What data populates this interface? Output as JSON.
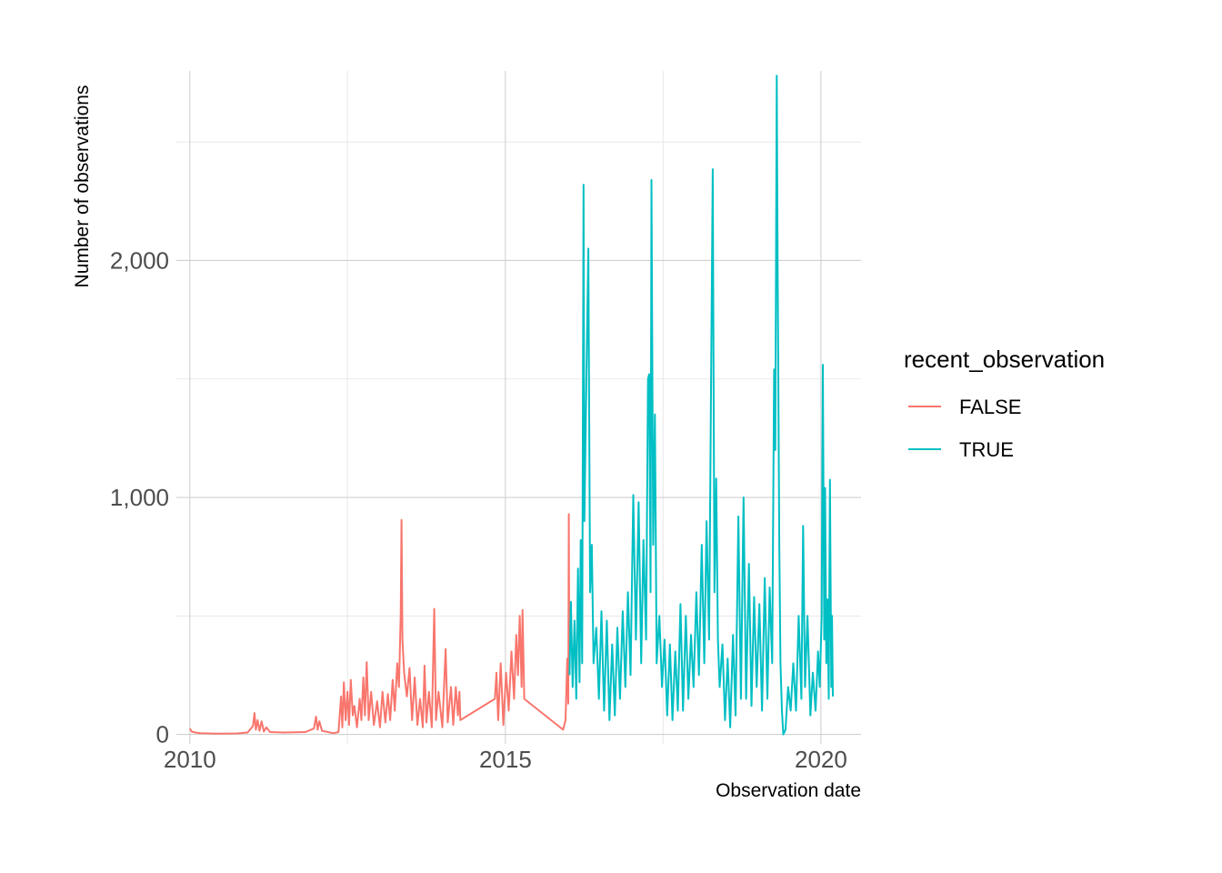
{
  "chart_data": {
    "type": "line",
    "title": "",
    "xlabel": "Observation date",
    "ylabel": "Number of observations",
    "x_type": "date",
    "xlim": [
      "2009-10-15",
      "2020-08-20"
    ],
    "ylim": [
      -40,
      2800
    ],
    "x_ticks": [
      {
        "date": "2010-01-01",
        "label": "2010"
      },
      {
        "date": "2015-01-01",
        "label": "2015"
      },
      {
        "date": "2020-01-01",
        "label": "2020"
      }
    ],
    "x_minor_ticks": [
      "2012-07-01",
      "2017-07-01"
    ],
    "y_ticks": [
      {
        "value": 0,
        "label": "0"
      },
      {
        "value": 1000,
        "label": "1,000"
      },
      {
        "value": 2000,
        "label": "2,000"
      }
    ],
    "y_minor_ticks": [
      500,
      1500,
      2500
    ],
    "grid": true,
    "legend": {
      "title": "recent_observation",
      "position": "right"
    },
    "series": [
      {
        "name": "FALSE",
        "color": "#F8766D",
        "points": [
          [
            "2010-01-01",
            25
          ],
          [
            "2010-01-12",
            12
          ],
          [
            "2010-02-01",
            8
          ],
          [
            "2010-03-01",
            5
          ],
          [
            "2010-06-01",
            3
          ],
          [
            "2010-10-01",
            4
          ],
          [
            "2010-12-01",
            8
          ],
          [
            "2011-01-01",
            35
          ],
          [
            "2011-01-10",
            90
          ],
          [
            "2011-01-18",
            20
          ],
          [
            "2011-01-28",
            60
          ],
          [
            "2011-02-08",
            15
          ],
          [
            "2011-02-20",
            55
          ],
          [
            "2011-03-05",
            12
          ],
          [
            "2011-03-20",
            30
          ],
          [
            "2011-04-10",
            10
          ],
          [
            "2011-07-01",
            8
          ],
          [
            "2011-11-01",
            10
          ],
          [
            "2011-12-20",
            25
          ],
          [
            "2012-01-01",
            75
          ],
          [
            "2012-01-10",
            20
          ],
          [
            "2012-01-20",
            55
          ],
          [
            "2012-02-05",
            15
          ],
          [
            "2012-03-10",
            10
          ],
          [
            "2012-04-10",
            5
          ],
          [
            "2012-05-10",
            10
          ],
          [
            "2012-05-25",
            160
          ],
          [
            "2012-06-01",
            30
          ],
          [
            "2012-06-10",
            220
          ],
          [
            "2012-06-20",
            60
          ],
          [
            "2012-07-01",
            180
          ],
          [
            "2012-07-10",
            40
          ],
          [
            "2012-07-20",
            230
          ],
          [
            "2012-08-01",
            80
          ],
          [
            "2012-08-10",
            120
          ],
          [
            "2012-08-25",
            30
          ],
          [
            "2012-09-10",
            150
          ],
          [
            "2012-09-20",
            60
          ],
          [
            "2012-10-01",
            240
          ],
          [
            "2012-10-10",
            80
          ],
          [
            "2012-10-20",
            305
          ],
          [
            "2012-11-01",
            60
          ],
          [
            "2012-11-15",
            180
          ],
          [
            "2012-12-01",
            40
          ],
          [
            "2012-12-20",
            140
          ],
          [
            "2013-01-05",
            30
          ],
          [
            "2013-01-20",
            180
          ],
          [
            "2013-02-05",
            50
          ],
          [
            "2013-02-20",
            170
          ],
          [
            "2013-03-05",
            60
          ],
          [
            "2013-03-20",
            230
          ],
          [
            "2013-04-01",
            100
          ],
          [
            "2013-04-15",
            300
          ],
          [
            "2013-04-25",
            200
          ],
          [
            "2013-05-05",
            500
          ],
          [
            "2013-05-10",
            905
          ],
          [
            "2013-05-15",
            400
          ],
          [
            "2013-05-25",
            260
          ],
          [
            "2013-06-10",
            160
          ],
          [
            "2013-06-25",
            280
          ],
          [
            "2013-07-10",
            60
          ],
          [
            "2013-07-25",
            240
          ],
          [
            "2013-08-10",
            40
          ],
          [
            "2013-08-25",
            150
          ],
          [
            "2013-09-10",
            30
          ],
          [
            "2013-09-20",
            290
          ],
          [
            "2013-10-01",
            50
          ],
          [
            "2013-10-15",
            180
          ],
          [
            "2013-11-01",
            30
          ],
          [
            "2013-11-15",
            530
          ],
          [
            "2013-11-25",
            60
          ],
          [
            "2013-12-10",
            180
          ],
          [
            "2014-01-01",
            30
          ],
          [
            "2014-01-20",
            360
          ],
          [
            "2014-02-01",
            50
          ],
          [
            "2014-02-20",
            200
          ],
          [
            "2014-03-05",
            40
          ],
          [
            "2014-03-20",
            200
          ],
          [
            "2014-04-01",
            80
          ],
          [
            "2014-04-10",
            180
          ],
          [
            "2014-04-15",
            60
          ],
          [
            "2014-11-01",
            150
          ],
          [
            "2014-11-10",
            260
          ],
          [
            "2014-11-20",
            60
          ],
          [
            "2014-12-05",
            300
          ],
          [
            "2014-12-20",
            40
          ],
          [
            "2015-01-05",
            260
          ],
          [
            "2015-01-20",
            100
          ],
          [
            "2015-02-05",
            350
          ],
          [
            "2015-02-20",
            150
          ],
          [
            "2015-03-05",
            420
          ],
          [
            "2015-03-15",
            250
          ],
          [
            "2015-03-25",
            500
          ],
          [
            "2015-04-05",
            200
          ],
          [
            "2015-04-10",
            525
          ],
          [
            "2015-04-20",
            150
          ],
          [
            "2015-12-01",
            20
          ],
          [
            "2015-12-15",
            60
          ],
          [
            "2015-12-25",
            320
          ],
          [
            "2015-12-31",
            130
          ],
          [
            "2016-01-03",
            930
          ],
          [
            "2016-01-06",
            250
          ]
        ]
      },
      {
        "name": "TRUE",
        "color": "#00BFC4",
        "points": [
          [
            "2016-01-07",
            250
          ],
          [
            "2016-01-15",
            560
          ],
          [
            "2016-01-25",
            200
          ],
          [
            "2016-02-05",
            480
          ],
          [
            "2016-02-15",
            150
          ],
          [
            "2016-02-25",
            700
          ],
          [
            "2016-03-05",
            220
          ],
          [
            "2016-03-12",
            820
          ],
          [
            "2016-03-20",
            300
          ],
          [
            "2016-03-28",
            2320
          ],
          [
            "2016-04-02",
            900
          ],
          [
            "2016-04-10",
            1300
          ],
          [
            "2016-04-18",
            1720
          ],
          [
            "2016-04-25",
            2050
          ],
          [
            "2016-05-05",
            600
          ],
          [
            "2016-05-15",
            800
          ],
          [
            "2016-05-25",
            300
          ],
          [
            "2016-06-10",
            450
          ],
          [
            "2016-06-25",
            150
          ],
          [
            "2016-07-10",
            520
          ],
          [
            "2016-07-25",
            100
          ],
          [
            "2016-08-10",
            480
          ],
          [
            "2016-08-25",
            60
          ],
          [
            "2016-09-10",
            380
          ],
          [
            "2016-09-25",
            80
          ],
          [
            "2016-10-10",
            450
          ],
          [
            "2016-10-25",
            150
          ],
          [
            "2016-11-10",
            520
          ],
          [
            "2016-11-25",
            200
          ],
          [
            "2016-12-10",
            600
          ],
          [
            "2016-12-25",
            250
          ],
          [
            "2017-01-10",
            1010
          ],
          [
            "2017-01-25",
            400
          ],
          [
            "2017-02-10",
            980
          ],
          [
            "2017-02-25",
            300
          ],
          [
            "2017-03-10",
            820
          ],
          [
            "2017-03-25",
            400
          ],
          [
            "2017-04-05",
            1500
          ],
          [
            "2017-04-12",
            1520
          ],
          [
            "2017-04-20",
            600
          ],
          [
            "2017-04-25",
            2340
          ],
          [
            "2017-05-05",
            800
          ],
          [
            "2017-05-15",
            1350
          ],
          [
            "2017-05-25",
            300
          ],
          [
            "2017-06-10",
            500
          ],
          [
            "2017-06-25",
            200
          ],
          [
            "2017-07-10",
            400
          ],
          [
            "2017-07-25",
            80
          ],
          [
            "2017-08-10",
            380
          ],
          [
            "2017-08-25",
            60
          ],
          [
            "2017-09-10",
            350
          ],
          [
            "2017-09-25",
            100
          ],
          [
            "2017-10-10",
            550
          ],
          [
            "2017-10-25",
            100
          ],
          [
            "2017-11-10",
            500
          ],
          [
            "2017-11-25",
            150
          ],
          [
            "2017-12-10",
            420
          ],
          [
            "2017-12-25",
            200
          ],
          [
            "2018-01-10",
            600
          ],
          [
            "2018-01-25",
            250
          ],
          [
            "2018-02-10",
            800
          ],
          [
            "2018-02-25",
            300
          ],
          [
            "2018-03-10",
            900
          ],
          [
            "2018-03-25",
            400
          ],
          [
            "2018-04-05",
            1450
          ],
          [
            "2018-04-15",
            2385
          ],
          [
            "2018-04-25",
            600
          ],
          [
            "2018-05-05",
            1080
          ],
          [
            "2018-05-15",
            400
          ],
          [
            "2018-05-25",
            200
          ],
          [
            "2018-06-10",
            380
          ],
          [
            "2018-06-25",
            60
          ],
          [
            "2018-07-10",
            320
          ],
          [
            "2018-07-25",
            30
          ],
          [
            "2018-08-10",
            420
          ],
          [
            "2018-08-25",
            80
          ],
          [
            "2018-09-10",
            920
          ],
          [
            "2018-09-25",
            150
          ],
          [
            "2018-10-10",
            1000
          ],
          [
            "2018-10-25",
            150
          ],
          [
            "2018-11-10",
            720
          ],
          [
            "2018-11-25",
            120
          ],
          [
            "2018-12-10",
            580
          ],
          [
            "2018-12-25",
            200
          ],
          [
            "2019-01-10",
            550
          ],
          [
            "2019-01-25",
            100
          ],
          [
            "2019-02-10",
            660
          ],
          [
            "2019-02-25",
            150
          ],
          [
            "2019-03-10",
            620
          ],
          [
            "2019-03-25",
            300
          ],
          [
            "2019-04-05",
            1540
          ],
          [
            "2019-04-12",
            1200
          ],
          [
            "2019-04-20",
            2780
          ],
          [
            "2019-04-25",
            2040
          ],
          [
            "2019-05-05",
            800
          ],
          [
            "2019-05-12",
            300
          ],
          [
            "2019-05-20",
            100
          ],
          [
            "2019-05-28",
            0
          ],
          [
            "2019-06-10",
            20
          ],
          [
            "2019-06-25",
            200
          ],
          [
            "2019-07-10",
            100
          ],
          [
            "2019-07-25",
            300
          ],
          [
            "2019-08-10",
            100
          ],
          [
            "2019-08-25",
            500
          ],
          [
            "2019-09-10",
            150
          ],
          [
            "2019-09-20",
            880
          ],
          [
            "2019-10-01",
            200
          ],
          [
            "2019-10-15",
            500
          ],
          [
            "2019-11-01",
            80
          ],
          [
            "2019-11-15",
            260
          ],
          [
            "2019-12-01",
            100
          ],
          [
            "2019-12-15",
            350
          ],
          [
            "2019-12-25",
            200
          ],
          [
            "2020-01-05",
            500
          ],
          [
            "2020-01-12",
            1560
          ],
          [
            "2020-01-20",
            400
          ],
          [
            "2020-01-25",
            1040
          ],
          [
            "2020-02-01",
            300
          ],
          [
            "2020-02-08",
            570
          ],
          [
            "2020-02-15",
            150
          ],
          [
            "2020-02-22",
            1075
          ],
          [
            "2020-03-01",
            200
          ],
          [
            "2020-03-05",
            500
          ],
          [
            "2020-03-10",
            160
          ]
        ]
      }
    ]
  }
}
